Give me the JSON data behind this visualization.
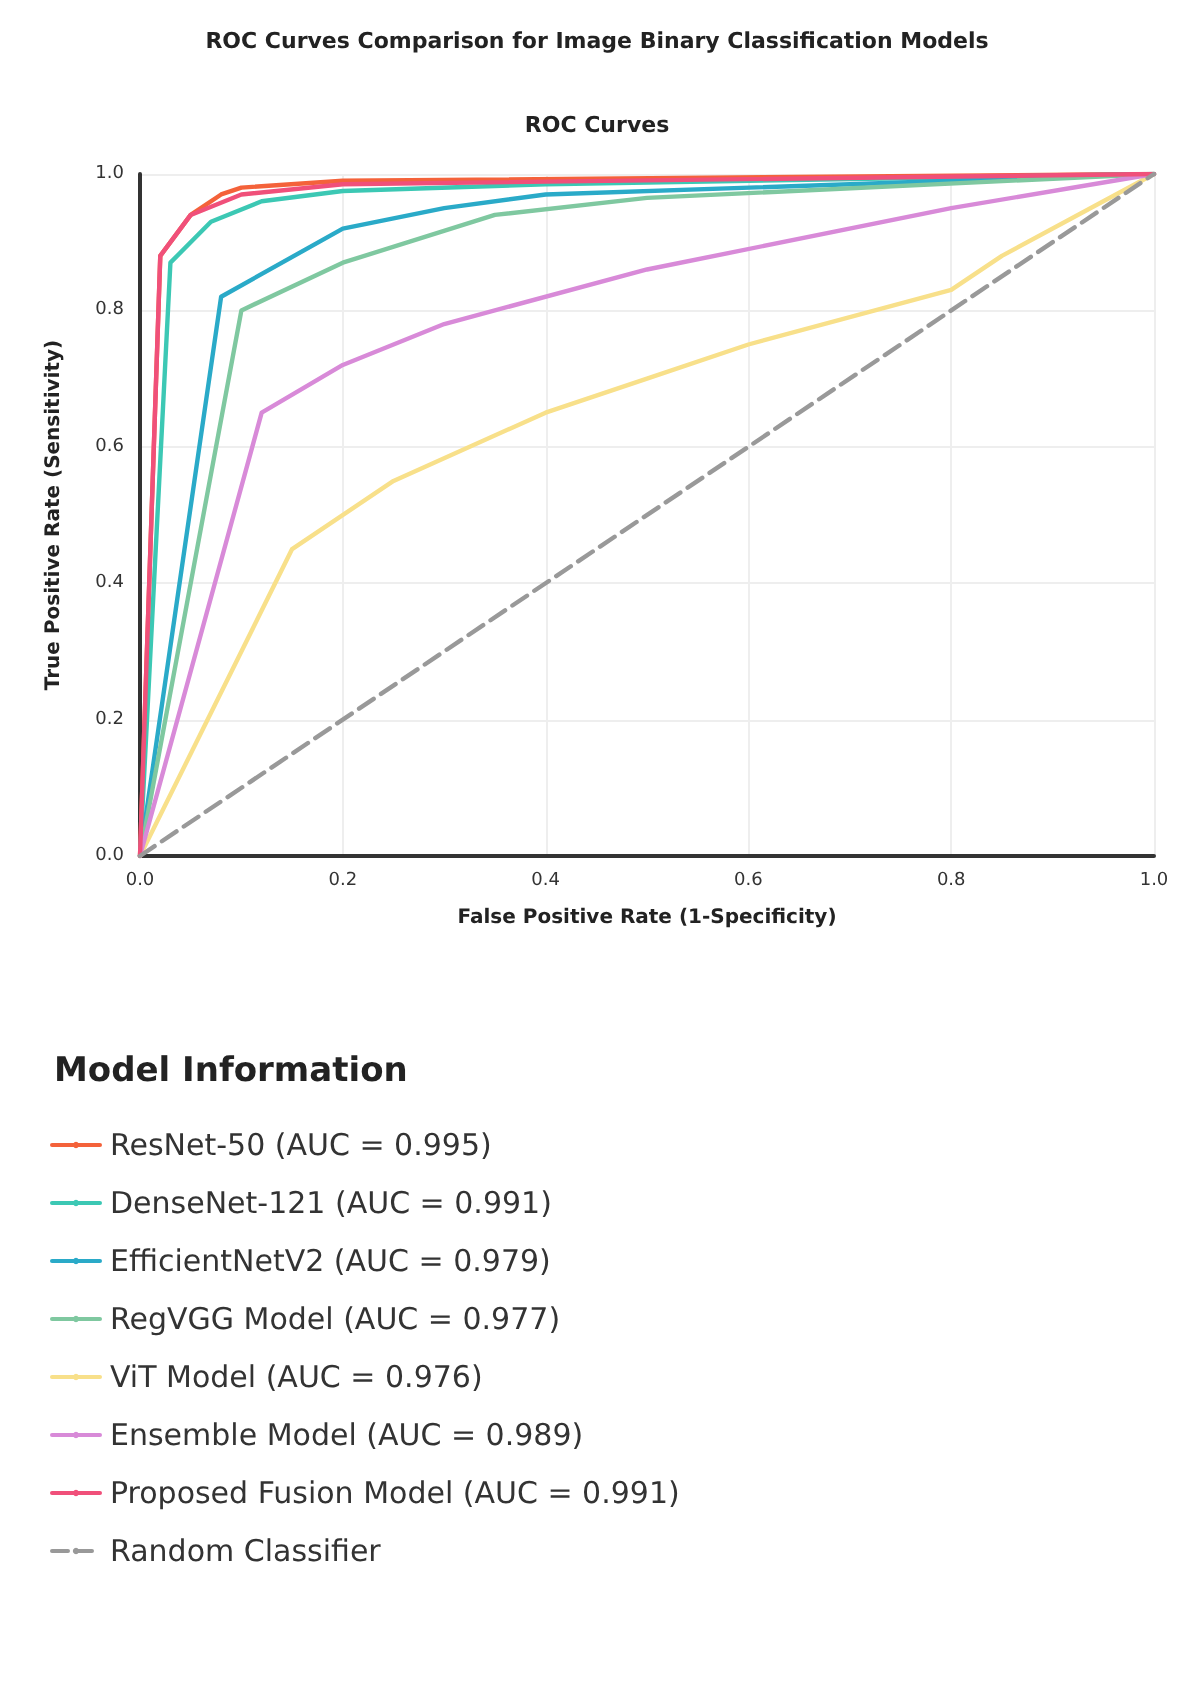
{
  "chart_data": {
    "type": "line",
    "title": "ROC Curves Comparison for Image Binary Classification Models",
    "subtitle": "ROC Curves",
    "xlabel": "False Positive Rate (1-Specificity)",
    "ylabel": "True Positive Rate (Sensitivity)",
    "legend_title": "Model Information",
    "xlim": [
      0,
      1
    ],
    "ylim": [
      0,
      1
    ],
    "xticks": [
      {
        "value": 0,
        "label": "0.0"
      },
      0.2,
      0.4,
      0.6,
      0.8,
      {
        "value": 1,
        "label": "1.0"
      }
    ],
    "yticks": [
      {
        "value": 0,
        "label": "0.0"
      },
      0.2,
      0.4,
      0.6,
      0.8,
      {
        "value": 1,
        "label": "1.0"
      }
    ],
    "grid": true,
    "legend": "bottom",
    "marker": "none",
    "line_style": "solid",
    "series": [
      {
        "name": "ResNet-50 (AUC = 0.995)",
        "color": "#f4623a",
        "x": [
          0,
          0.02,
          0.05,
          0.08,
          0.1,
          0.2,
          1
        ],
        "values": [
          0,
          0.88,
          0.94,
          0.97,
          0.98,
          0.99,
          1
        ]
      },
      {
        "name": "DenseNet-121 (AUC = 0.991)",
        "color": "#3cc8b4",
        "x": [
          0,
          0.03,
          0.07,
          0.12,
          0.2,
          0.4,
          1
        ],
        "values": [
          0,
          0.87,
          0.93,
          0.96,
          0.975,
          0.985,
          1
        ]
      },
      {
        "name": "EfficientNetV2 (AUC = 0.979)",
        "color": "#2aaac8",
        "x": [
          0,
          0.08,
          0.2,
          0.3,
          0.4,
          1
        ],
        "values": [
          0,
          0.82,
          0.92,
          0.95,
          0.97,
          1
        ]
      },
      {
        "name": "RegVGG Model (AUC = 0.977)",
        "color": "#7fc8a0",
        "x": [
          0,
          0.1,
          0.2,
          0.35,
          0.5,
          1
        ],
        "values": [
          0,
          0.8,
          0.87,
          0.94,
          0.965,
          1
        ]
      },
      {
        "name": "ViT Model (AUC = 0.976)",
        "color": "#f8e08a",
        "x": [
          0,
          0.15,
          0.25,
          0.4,
          0.5,
          0.6,
          0.8,
          0.85,
          1
        ],
        "values": [
          0,
          0.45,
          0.55,
          0.65,
          0.7,
          0.75,
          0.83,
          0.88,
          1
        ]
      },
      {
        "name": "Ensemble Model (AUC = 0.989)",
        "color": "#d88ad8",
        "x": [
          0,
          0.12,
          0.2,
          0.3,
          0.5,
          0.8,
          1
        ],
        "values": [
          0,
          0.65,
          0.72,
          0.78,
          0.86,
          0.95,
          1
        ]
      },
      {
        "name": "Proposed Fusion Model (AUC = 0.991)",
        "color": "#f0507a",
        "x": [
          0,
          0.02,
          0.05,
          0.1,
          0.2,
          1
        ],
        "values": [
          0,
          0.88,
          0.94,
          0.97,
          0.985,
          1
        ]
      },
      {
        "name": "Random Classifier",
        "color": "#999999",
        "x": [
          0,
          1
        ],
        "values": [
          0,
          1
        ],
        "line_style": "dashed"
      }
    ]
  }
}
